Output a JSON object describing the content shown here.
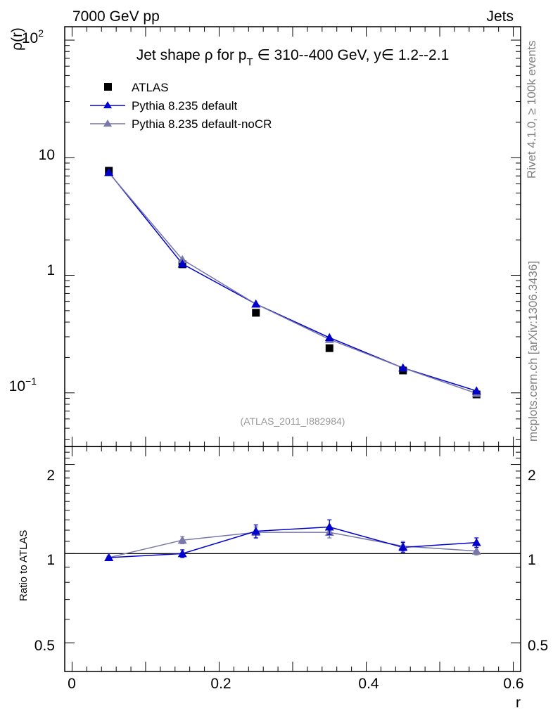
{
  "header": {
    "left": "7000 GeV pp",
    "right": "Jets"
  },
  "side_labels": {
    "rivet": "Rivet 4.1.0, ≥ 100k events",
    "mcplots": "mcplots.cern.ch [arXiv:1306.3436]"
  },
  "chart_data": [
    {
      "type": "scatter",
      "panel": "main",
      "title_parts": {
        "prefix": "Jet shape ρ for p",
        "sub": "T",
        "suffix": " ∈ 310--400 GeV, y∈ 1.2--2.1"
      },
      "ylabel": "ρ(r)",
      "yscale": "log",
      "ylim": [
        0.035,
        130
      ],
      "xlim": [
        -0.01,
        0.61
      ],
      "ytick_labels": {
        "t100": {
          "base": "10",
          "exp": "2"
        },
        "t10": "10",
        "t1": "1",
        "t01": {
          "base": "10",
          "exp": "−1"
        }
      },
      "watermark": "(ATLAS_2011_I882984)",
      "x": [
        0.05,
        0.15,
        0.25,
        0.35,
        0.45,
        0.55
      ],
      "series": [
        {
          "name": "ATLAS",
          "marker": "square",
          "color": "#000000",
          "values": [
            7.75,
            1.24,
            0.48,
            0.24,
            0.155,
            0.097
          ]
        },
        {
          "name": "Pythia 8.235 default",
          "marker": "triangle",
          "color": "#0000cc",
          "values": [
            7.5,
            1.25,
            0.57,
            0.295,
            0.163,
            0.104
          ]
        },
        {
          "name": "Pythia 8.235 default-noCR",
          "marker": "triangle",
          "color": "#7777aa",
          "values": [
            7.45,
            1.36,
            0.57,
            0.285,
            0.163,
            0.099
          ]
        }
      ]
    },
    {
      "type": "scatter",
      "panel": "ratio",
      "ylabel": "Ratio to ATLAS",
      "xlabel": "r",
      "yscale": "log",
      "ylim": [
        0.4,
        2.3
      ],
      "xlim": [
        -0.01,
        0.61
      ],
      "ytick_labels_left": {
        "t2": "2",
        "t1": "1",
        "t05": "0.5"
      },
      "ytick_labels_right": {
        "t2": "2",
        "t1": "1",
        "t05": "0.5"
      },
      "xtick_labels": {
        "t0": "0",
        "t02": "0.2",
        "t04": "0.4",
        "t06": "0.6"
      },
      "x": [
        0.05,
        0.15,
        0.25,
        0.35,
        0.45,
        0.55
      ],
      "series": [
        {
          "name": "Pythia 8.235 default",
          "color": "#0000cc",
          "values": [
            0.97,
            1.0,
            1.19,
            1.23,
            1.05,
            1.09
          ],
          "errors": [
            0.01,
            0.03,
            0.06,
            0.07,
            0.04,
            0.04
          ]
        },
        {
          "name": "Pythia 8.235 default-noCR",
          "color": "#7777aa",
          "values": [
            0.97,
            1.11,
            1.18,
            1.18,
            1.06,
            1.02
          ],
          "errors": [
            0.01,
            0.03,
            0.05,
            0.05,
            0.04,
            0.03
          ]
        }
      ]
    }
  ]
}
